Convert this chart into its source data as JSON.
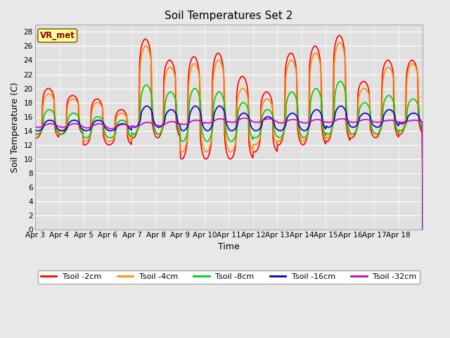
{
  "title": "Soil Temperatures Set 2",
  "xlabel": "Time",
  "ylabel": "Soil Temperature (C)",
  "annotation": "VR_met",
  "ylim": [
    0,
    29
  ],
  "yticks": [
    0,
    2,
    4,
    6,
    8,
    10,
    12,
    14,
    16,
    18,
    20,
    22,
    24,
    26,
    28
  ],
  "x_labels": [
    "Apr 3",
    "Apr 4",
    "Apr 5",
    "Apr 6",
    "Apr 7",
    "Apr 8",
    "Apr 9",
    "Apr 10",
    "Apr 11",
    "Apr 12",
    "Apr 13",
    "Apr 14",
    "Apr 15",
    "Apr 16",
    "Apr 17",
    "Apr 18"
  ],
  "series_labels": [
    "Tsoil -2cm",
    "Tsoil -4cm",
    "Tsoil -8cm",
    "Tsoil -16cm",
    "Tsoil -32cm"
  ],
  "series_colors": [
    "#ff0000",
    "#ff8c00",
    "#00cc00",
    "#0000cc",
    "#cc00cc"
  ],
  "fig_facecolor": "#e8e8e8",
  "plot_facecolor": "#e0e0e0",
  "title_fontsize": 11,
  "axis_fontsize": 9,
  "legend_fontsize": 8,
  "tick_fontsize": 7.5
}
